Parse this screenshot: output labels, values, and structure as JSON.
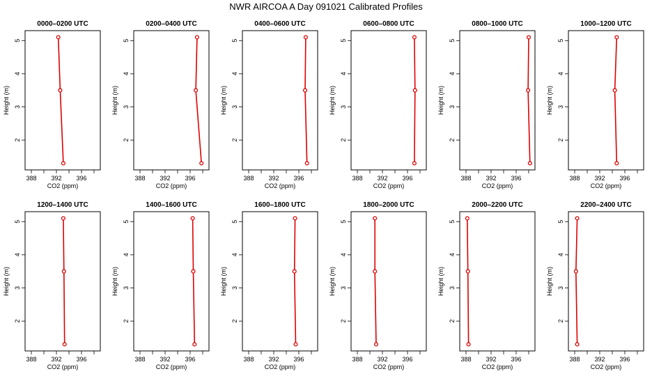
{
  "title": "NWR AIRCOA A  Day 091021  Calibrated Profiles",
  "colors": {
    "series": "#dd0000",
    "axis": "#000000"
  },
  "chart_data": {
    "type": "line",
    "xlabel": "CO2 (ppm)",
    "ylabel": "Height (m)",
    "xlim": [
      387,
      399
    ],
    "ylim": [
      1.1,
      5.3
    ],
    "xticks": [
      388,
      392,
      396
    ],
    "yticks": [
      2,
      3,
      4,
      5
    ],
    "grid": false,
    "panels": [
      {
        "title": "0000–0200 UTC",
        "points": [
          {
            "x": 393.1,
            "y": 1.3
          },
          {
            "x": 392.6,
            "y": 3.5
          },
          {
            "x": 392.3,
            "y": 5.1
          }
        ]
      },
      {
        "title": "0200–0400 UTC",
        "points": [
          {
            "x": 397.8,
            "y": 1.3
          },
          {
            "x": 396.9,
            "y": 3.5
          },
          {
            "x": 397.1,
            "y": 5.1
          }
        ]
      },
      {
        "title": "0400–0600 UTC",
        "points": [
          {
            "x": 397.3,
            "y": 1.3
          },
          {
            "x": 397.0,
            "y": 3.5
          },
          {
            "x": 397.1,
            "y": 5.1
          }
        ]
      },
      {
        "title": "0600–0800 UTC",
        "points": [
          {
            "x": 397.1,
            "y": 1.3
          },
          {
            "x": 397.2,
            "y": 3.5
          },
          {
            "x": 397.1,
            "y": 5.1
          }
        ]
      },
      {
        "title": "0800–1000 UTC",
        "points": [
          {
            "x": 398.2,
            "y": 1.3
          },
          {
            "x": 397.9,
            "y": 3.5
          },
          {
            "x": 398.0,
            "y": 5.1
          }
        ]
      },
      {
        "title": "1000–1200 UTC",
        "points": [
          {
            "x": 394.7,
            "y": 1.3
          },
          {
            "x": 394.4,
            "y": 3.5
          },
          {
            "x": 394.7,
            "y": 5.1
          }
        ]
      },
      {
        "title": "1200–1400 UTC",
        "points": [
          {
            "x": 393.3,
            "y": 1.3
          },
          {
            "x": 393.2,
            "y": 3.5
          },
          {
            "x": 393.1,
            "y": 5.1
          }
        ]
      },
      {
        "title": "1400–1600 UTC",
        "points": [
          {
            "x": 396.7,
            "y": 1.3
          },
          {
            "x": 396.5,
            "y": 3.5
          },
          {
            "x": 396.4,
            "y": 5.1
          }
        ]
      },
      {
        "title": "1600–1800 UTC",
        "points": [
          {
            "x": 395.5,
            "y": 1.3
          },
          {
            "x": 395.3,
            "y": 3.5
          },
          {
            "x": 395.4,
            "y": 5.1
          }
        ]
      },
      {
        "title": "1800–2000 UTC",
        "points": [
          {
            "x": 391.0,
            "y": 1.3
          },
          {
            "x": 390.8,
            "y": 3.5
          },
          {
            "x": 390.8,
            "y": 5.1
          }
        ]
      },
      {
        "title": "2000–2200 UTC",
        "points": [
          {
            "x": 388.4,
            "y": 1.3
          },
          {
            "x": 388.3,
            "y": 3.5
          },
          {
            "x": 388.2,
            "y": 5.1
          }
        ]
      },
      {
        "title": "2200–2400 UTC",
        "points": [
          {
            "x": 388.4,
            "y": 1.3
          },
          {
            "x": 388.2,
            "y": 3.5
          },
          {
            "x": 388.4,
            "y": 5.1
          }
        ]
      }
    ]
  }
}
